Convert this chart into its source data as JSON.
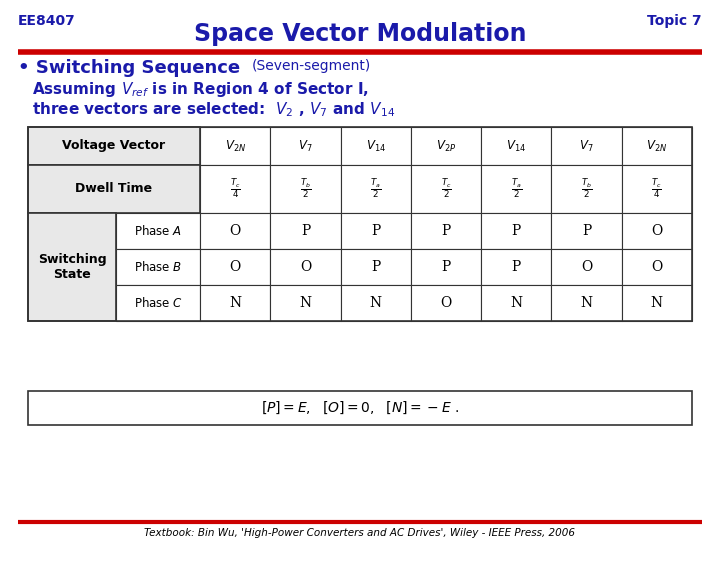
{
  "title": "Space Vector Modulation",
  "title_color": "#1a1aaa",
  "header_left": "EE8407",
  "header_right": "Topic 7",
  "header_color": "#1a1aaa",
  "line_color": "#CC0000",
  "text_color": "#1a1aaa",
  "table_border_color": "#333333",
  "footnote": "Textbook: Bin Wu, 'High-Power Converters and AC Drives', Wiley - IEEE Press, 2006",
  "vv_labels": [
    "$\\mathit{V}_{2N}$",
    "$\\mathit{V}_{7}$",
    "$\\mathit{V}_{14}$",
    "$\\mathit{V}_{2P}$",
    "$\\mathit{V}_{14}$",
    "$\\mathit{V}_{7}$",
    "$\\mathit{V}_{2N}$"
  ],
  "dwell_labels": [
    "$\\frac{T_c}{4}$",
    "$\\frac{T_b}{2}$",
    "$\\frac{T_a}{2}$",
    "$\\frac{T_c}{2}$",
    "$\\frac{T_a}{2}$",
    "$\\frac{T_b}{2}$",
    "$\\frac{T_c}{4}$"
  ],
  "phase_a": [
    "O",
    "P",
    "P",
    "P",
    "P",
    "P",
    "O"
  ],
  "phase_b": [
    "O",
    "O",
    "P",
    "P",
    "P",
    "O",
    "O"
  ],
  "phase_c": [
    "N",
    "N",
    "N",
    "O",
    "N",
    "N",
    "N"
  ]
}
